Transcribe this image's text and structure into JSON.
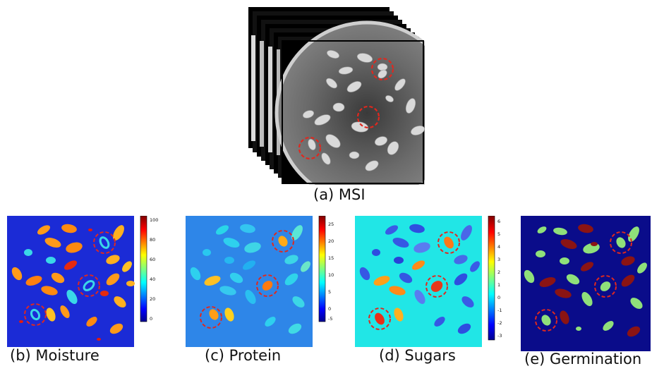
{
  "panels": {
    "msi": {
      "caption": "(a) MSI"
    },
    "moisture": {
      "caption": "(b) Moisture",
      "colorbar_ticks": [
        "100",
        "80",
        "60",
        "40",
        "20",
        "0"
      ]
    },
    "protein": {
      "caption": "(c) Protein",
      "colorbar_ticks": [
        "25",
        "20",
        "15",
        "10",
        "5",
        "0",
        "-5"
      ]
    },
    "sugars": {
      "caption": "(d) Sugars",
      "colorbar_ticks": [
        "6",
        "5",
        "4",
        "3",
        "2",
        "1",
        "0",
        "-1",
        "-2",
        "-3"
      ]
    },
    "germination": {
      "caption": "(e) Germination"
    }
  },
  "colors": {
    "moisture_bg": "#1b2bd6",
    "protein_bg": "#2e86e8",
    "sugars_bg": "#21e6e6",
    "germination_bg": "#0a0c8a",
    "highlight_circle": "#e0281e",
    "germinated_seed": "#8fe07a",
    "non_germinated": "#8b1414"
  }
}
